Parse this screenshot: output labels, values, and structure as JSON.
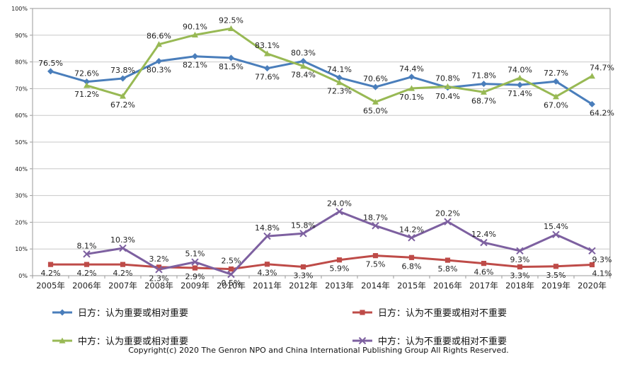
{
  "chart_data": {
    "type": "line",
    "categories": [
      "2005年",
      "2006年",
      "2007年",
      "2008年",
      "2009年",
      "2010年",
      "2011年",
      "2012年",
      "2013年",
      "2014年",
      "2015年",
      "2016年",
      "2017年",
      "2018年",
      "2019年",
      "2020年"
    ],
    "ylim": [
      0,
      100
    ],
    "yticks": [
      "0%",
      "10%",
      "20%",
      "30%",
      "40%",
      "50%",
      "60%",
      "70%",
      "80%",
      "90%",
      "100%"
    ],
    "grid": true,
    "legend_position": "bottom",
    "series": [
      {
        "name": "日方：认为重要或相对重要",
        "color": "#4a7ebb",
        "marker": "diamond",
        "values": [
          76.5,
          72.6,
          73.8,
          80.3,
          82.1,
          81.5,
          77.6,
          80.3,
          74.1,
          70.6,
          74.4,
          70.4,
          71.8,
          71.4,
          72.7,
          64.2
        ],
        "labels": [
          "76.5%",
          "72.6%",
          "73.8%",
          "80.3%",
          "82.1%",
          "81.5%",
          "77.6%",
          "80.3%",
          "74.1%",
          "70.6%",
          "74.4%",
          "70.4%",
          "71.8%",
          "71.4%",
          "72.7%",
          "64.2%"
        ]
      },
      {
        "name": "日方：认为不重要或相对不重要",
        "color": "#be4b48",
        "marker": "square",
        "values": [
          4.2,
          4.2,
          4.2,
          3.2,
          2.9,
          2.5,
          4.3,
          3.3,
          5.9,
          7.5,
          6.8,
          5.8,
          4.6,
          3.3,
          3.5,
          4.1
        ],
        "labels": [
          "4.2%",
          "4.2%",
          "4.2%",
          "3.2%",
          "2.9%",
          "2.5%",
          "4.3%",
          "3.3%",
          "5.9%",
          "7.5%",
          "6.8%",
          "5.8%",
          "4.6%",
          "3.3%",
          "3.5%",
          "4.1%"
        ]
      },
      {
        "name": "中方：认为重要或相对重要",
        "color": "#98b954",
        "marker": "triangle",
        "values": [
          null,
          71.2,
          67.2,
          86.6,
          90.1,
          92.5,
          83.1,
          78.4,
          72.3,
          65.0,
          70.1,
          70.8,
          68.7,
          74.0,
          67.0,
          74.7
        ],
        "labels": [
          "",
          "71.2%",
          "67.2%",
          "86.6%",
          "90.1%",
          "92.5%",
          "83.1%",
          "78.4%",
          "72.3%",
          "65.0%",
          "70.1%",
          "70.8%",
          "68.7%",
          "74.0%",
          "67.0%",
          "74.7%"
        ]
      },
      {
        "name": "中方：认为不重要或相对不重要",
        "color": "#7d60a0",
        "marker": "x",
        "values": [
          null,
          8.1,
          10.3,
          2.3,
          5.1,
          0.5,
          14.8,
          15.8,
          24.0,
          18.7,
          14.2,
          20.2,
          12.4,
          9.3,
          15.4,
          9.3
        ],
        "labels": [
          "",
          "8.1%",
          "10.3%",
          "2.3%",
          "5.1%",
          "0.5%",
          "14.8%",
          "15.8%",
          "24.0%",
          "18.7%",
          "14.2%",
          "20.2%",
          "12.4%",
          "9.3%",
          "15.4%",
          "9.3%"
        ]
      }
    ]
  },
  "copyright": "Copyright(c) 2020 The Genron NPO and China International Publishing Group All Rights Reserved."
}
